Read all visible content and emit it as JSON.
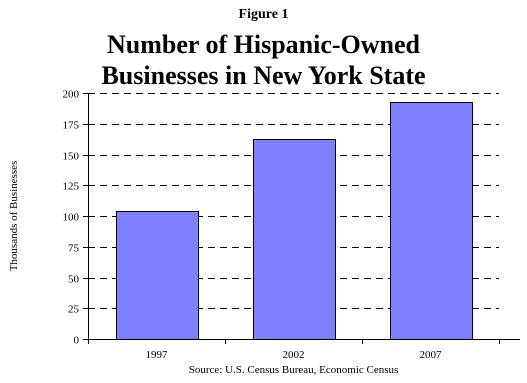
{
  "figure_label": "Figure 1",
  "title_lines": [
    "Number of Hispanic-Owned",
    "Businesses in New York State"
  ],
  "source": "Source: U.S. Census Bureau, Economic Census",
  "colors": {
    "bar_fill": "#8080ff",
    "bar_stroke": "#000000",
    "grid": "#000000"
  },
  "chart_data": {
    "type": "bar",
    "title": "Number of Hispanic-Owned Businesses in New York State",
    "xlabel": "",
    "ylabel": "Thousands of Businesses",
    "categories": [
      "1997",
      "2002",
      "2007"
    ],
    "values": [
      104,
      163,
      193
    ],
    "ylim": [
      0,
      200
    ],
    "yticks": [
      0,
      25,
      50,
      75,
      100,
      125,
      150,
      175,
      200
    ],
    "grid": "horizontal dashed",
    "legend": "none"
  }
}
